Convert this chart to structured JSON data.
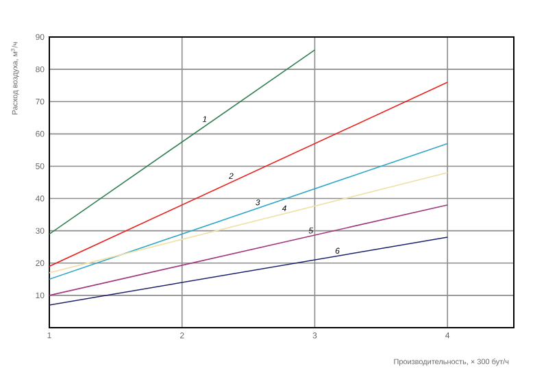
{
  "chart_data": {
    "type": "line",
    "xlabel": "Производительность, × 300 бут/ч",
    "ylabel": "Расход воздуха, м$^{3}$/ч",
    "xlim": [
      1,
      4.5
    ],
    "ylim": [
      0,
      90
    ],
    "xticks": [
      1,
      2,
      3,
      4
    ],
    "yticks": [
      10,
      20,
      30,
      40,
      50,
      60,
      70,
      80,
      90
    ],
    "grid": true,
    "legend": false,
    "marker": "none",
    "line_style": "solid",
    "series": [
      {
        "name": "1",
        "color": "#2e7d4f",
        "x": [
          1,
          3
        ],
        "values": [
          29,
          86
        ]
      },
      {
        "name": "2",
        "color": "#e8231e",
        "x": [
          1,
          4
        ],
        "values": [
          19,
          76
        ]
      },
      {
        "name": "3",
        "color": "#2fa7c8",
        "x": [
          1,
          4
        ],
        "values": [
          15,
          57
        ]
      },
      {
        "name": "4",
        "color": "#efe2a8",
        "x": [
          1,
          4
        ],
        "values": [
          17,
          48
        ]
      },
      {
        "name": "5",
        "color": "#a0357a",
        "x": [
          1,
          4
        ],
        "values": [
          10,
          38
        ]
      },
      {
        "name": "6",
        "color": "#1c1f6b",
        "x": [
          1,
          4
        ],
        "values": [
          7,
          28
        ]
      }
    ]
  }
}
